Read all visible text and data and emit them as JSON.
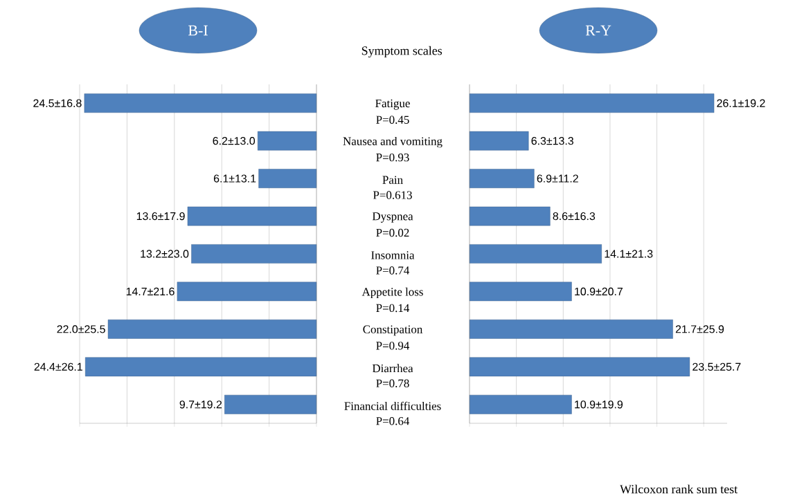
{
  "chart_data": [
    {
      "type": "bar",
      "orientation": "horizontal",
      "title": "B-I",
      "categories": [
        "Fatigue",
        "Nausea and vomiting",
        "Pain",
        "Dyspnea",
        "Insomnia",
        "Appetite loss",
        "Constipation",
        "Diarrhea",
        "Financial difficulties"
      ],
      "values": [
        24.5,
        6.2,
        6.1,
        13.6,
        13.2,
        14.7,
        22.0,
        24.4,
        9.7
      ],
      "value_labels": [
        "24.5±16.8",
        "6.2±13.0",
        "6.1±13.1",
        "13.6±17.9",
        "13.2±23.0",
        "14.7±21.6",
        "22.0±25.5",
        "24.4±26.1",
        "9.7±19.2"
      ],
      "color": "#4f81bd",
      "xlim": [
        25,
        0
      ],
      "xticks": [
        0,
        5,
        10,
        15,
        20,
        25
      ],
      "grid": "x",
      "tick_labels": "y",
      "annotations": [
        "P=0.45",
        "P=0.93",
        "P=0.613",
        "P=0.02",
        "P=0.74",
        "P=0.14",
        "P=0.94",
        "P=0.78",
        "P=0.64"
      ]
    },
    {
      "type": "bar",
      "orientation": "horizontal",
      "title": "R-Y",
      "values": [
        26.1,
        6.3,
        6.9,
        8.6,
        14.1,
        10.9,
        21.7,
        23.5,
        10.9
      ],
      "value_labels": [
        "26.1±19.2",
        "6.3±13.3",
        "6.9±11.2",
        "8.6±16.3",
        "14.1±21.3",
        "10.9±20.7",
        "21.7±25.9",
        "23.5±25.7",
        "10.9±19.9"
      ],
      "color": "#4f81bd",
      "xlim": [
        0,
        27.5
      ],
      "xticks": [
        0,
        5,
        10,
        15,
        20,
        25
      ],
      "grid": "x",
      "tick_labels": false,
      "annotations": [
        "Symptom scales",
        "Wilcoxon rank sum test"
      ]
    }
  ]
}
